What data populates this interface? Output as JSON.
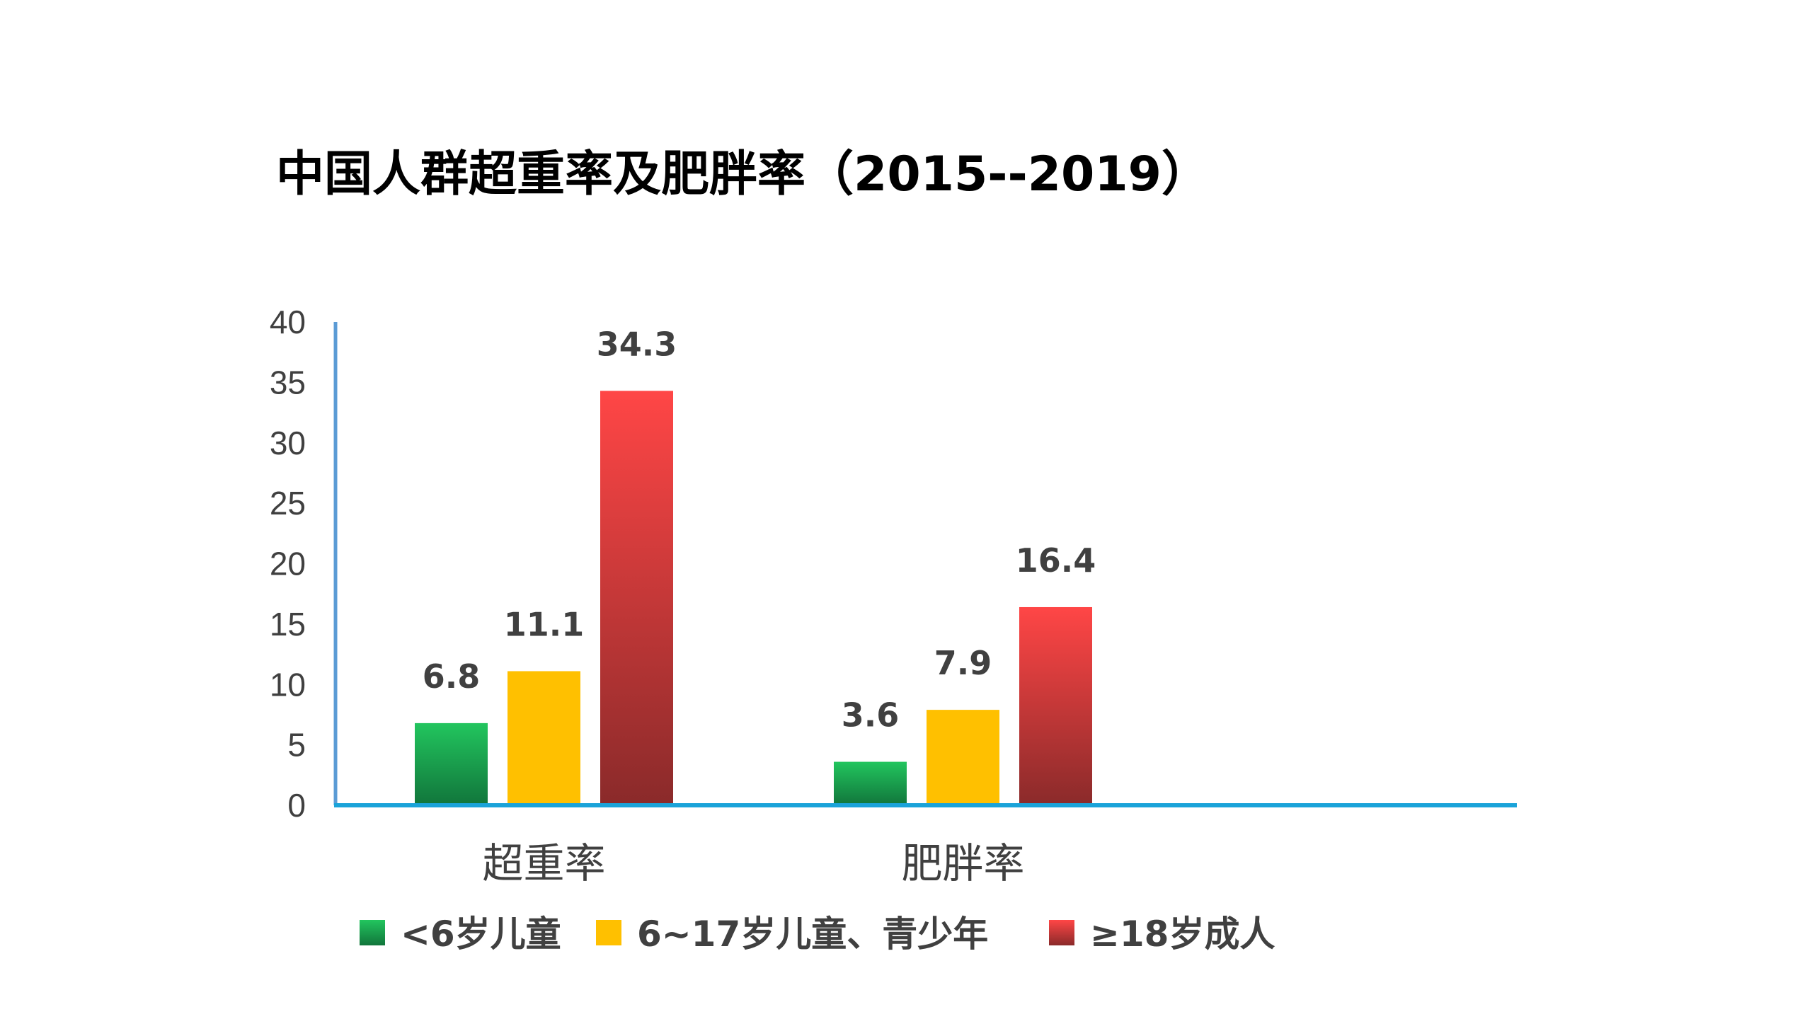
{
  "title": "中国人群超重率及肥胖率（2015--2019）",
  "chart_data": {
    "type": "bar",
    "categories": [
      "超重率",
      "肥胖率"
    ],
    "series": [
      {
        "name": "<6岁儿童",
        "values": [
          6.8,
          3.6
        ],
        "color": "#1aa84f"
      },
      {
        "name": "6~17岁儿童、青少年",
        "values": [
          11.1,
          7.9
        ],
        "color": "#ffc000"
      },
      {
        "name": "≥18岁成人",
        "values": [
          34.3,
          16.4
        ],
        "color": "#ff4444"
      }
    ],
    "ylim": [
      0,
      40
    ],
    "yticks": [
      "0",
      "5",
      "10",
      "15",
      "20",
      "25",
      "30",
      "35",
      "40"
    ],
    "data_labels": [
      [
        "6.8",
        "3.6"
      ],
      [
        "11.1",
        "7.9"
      ],
      [
        "34.3",
        "16.4"
      ]
    ],
    "grid": false,
    "legend_position": "bottom"
  }
}
